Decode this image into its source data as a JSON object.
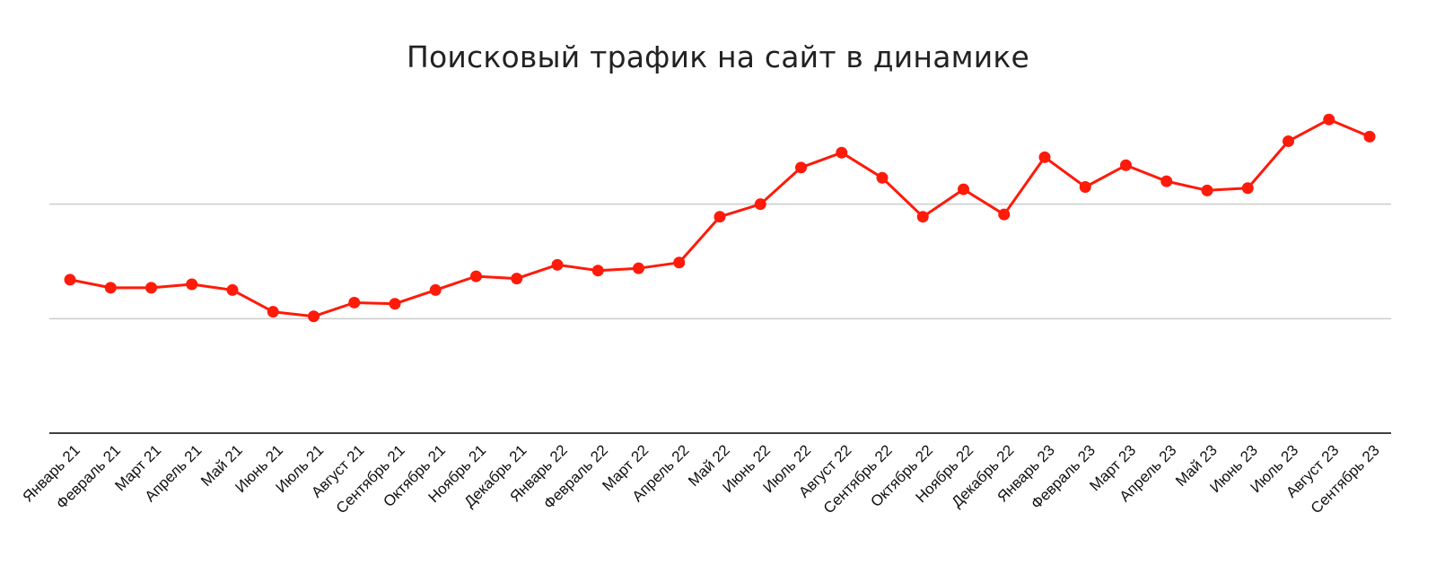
{
  "chart_data": {
    "type": "line",
    "title": "Поисковый трафик на сайт в динамике",
    "xlabel": "",
    "ylabel": "",
    "y_tick_labels_shown": false,
    "gridlines": "horizontal",
    "legend": "none",
    "colors": {
      "series": "#ff1a0a",
      "grid": "#cccccc",
      "axis": "#000000"
    },
    "categories": [
      "Январь 21",
      "Февраль 21",
      "Март 21",
      "Апрель 21",
      "Май 21",
      "Июнь 21",
      "Июль 21",
      "Август 21",
      "Сентябрь 21",
      "Октябрь 21",
      "Ноябрь 21",
      "Декабрь 21",
      "Январь 22",
      "Февраль 22",
      "Март 22",
      "Апрель 22",
      "Май 22",
      "Июнь 22",
      "Июль 22",
      "Август 22",
      "Сентябрь 22",
      "Октябрь 22",
      "Ноябрь 22",
      "Декабрь 22",
      "Январь 23",
      "Февраль 23",
      "Март 23",
      "Апрель 23",
      "Май 23",
      "Июнь 23",
      "Июль 23",
      "Август 23",
      "Сентябрь 23"
    ],
    "series": [
      {
        "values": [
          1.34,
          1.27,
          1.27,
          1.3,
          1.25,
          1.06,
          1.02,
          1.14,
          1.13,
          1.25,
          1.37,
          1.35,
          1.47,
          1.42,
          1.44,
          1.49,
          1.89,
          2.0,
          2.32,
          2.45,
          2.23,
          1.89,
          2.13,
          1.91,
          2.41,
          2.15,
          2.34,
          2.2,
          2.12,
          2.14,
          2.55,
          2.74,
          2.59
        ]
      }
    ],
    "ylim": [
      0,
      3
    ],
    "yticks": [
      0,
      1,
      2
    ]
  }
}
